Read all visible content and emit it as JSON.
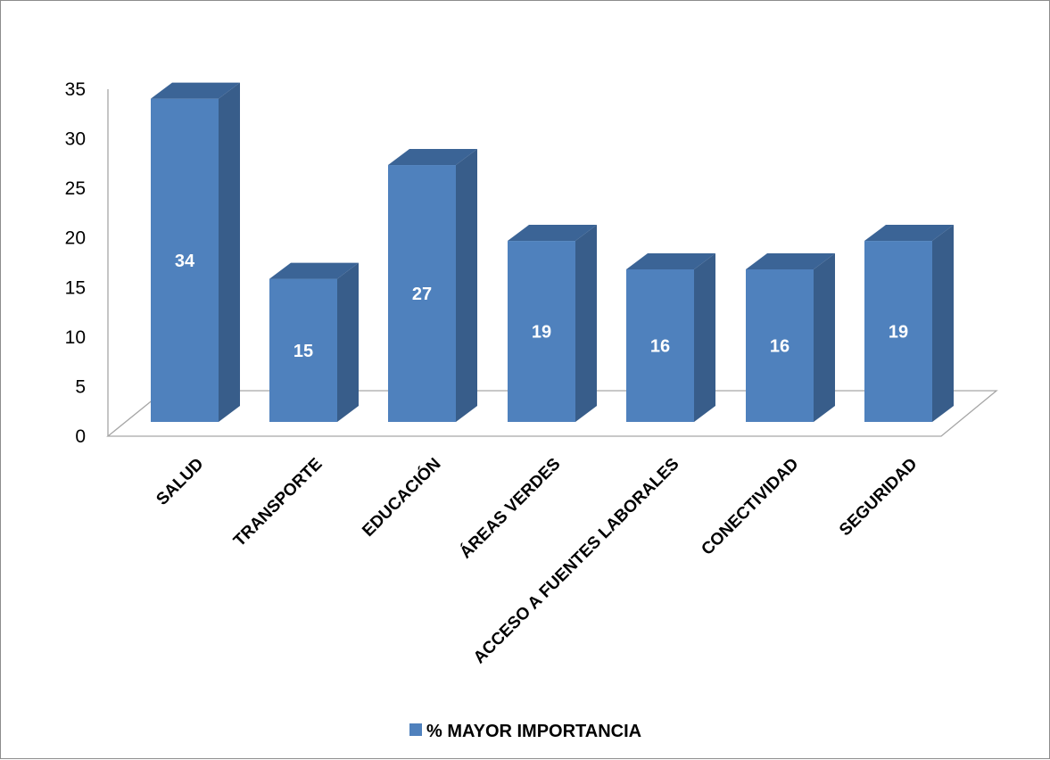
{
  "chart_data": {
    "type": "bar",
    "style": "3d-column",
    "categories": [
      "SALUD",
      "TRANSPORTE",
      "EDUCACIÓN",
      "ÁREAS VERDES",
      "ACCESO A FUENTES LABORALES",
      "CONECTIVIDAD",
      "SEGURIDAD"
    ],
    "series": [
      {
        "name": "% MAYOR IMPORTANCIA",
        "values": [
          34,
          15,
          27,
          19,
          16,
          16,
          19
        ]
      }
    ],
    "data_labels": [
      "34",
      "15",
      "27",
      "19",
      "16",
      "16",
      "19"
    ],
    "y_ticks": [
      "0",
      "5",
      "10",
      "15",
      "20",
      "25",
      "30",
      "35"
    ],
    "ylim": [
      0,
      35
    ],
    "legend_position": "bottom",
    "grid": false,
    "colors": {
      "front": "#4f81bd",
      "side": "#385d8a",
      "top": "#3b6496",
      "axis": "#a6a6a6"
    }
  }
}
